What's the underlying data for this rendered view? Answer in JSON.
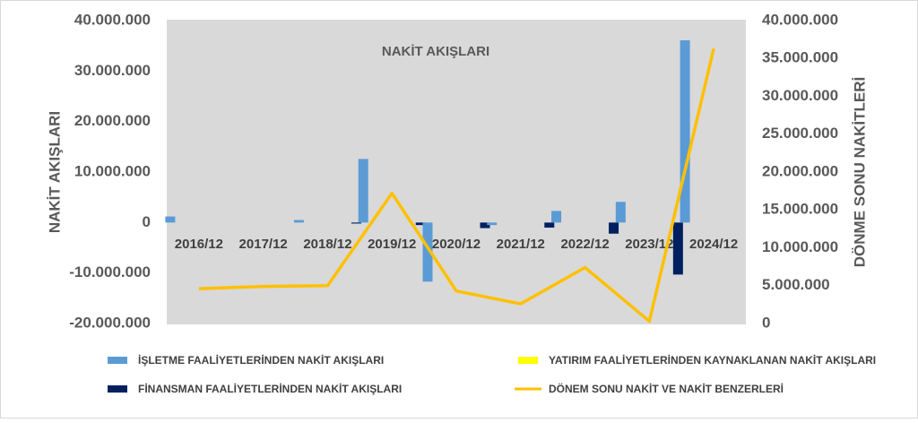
{
  "chart_data": {
    "type": "bar-line",
    "title": "NAKİT AKIŞLARI",
    "y_label": "NAKİT AKIŞLARI",
    "y2_label": "DÖNME SONU NAKİTLERİ",
    "categories": [
      "2016/12",
      "2017/12",
      "2018/12",
      "2019/12",
      "2020/12",
      "2021/12",
      "2022/12",
      "2023/12",
      "2024/12"
    ],
    "series": [
      {
        "name": "İŞLETME FAALİYETLERİNDEN NAKİT AKIŞLARI",
        "type": "bar",
        "color": "#5b9bd5",
        "values": [
          1200000,
          0,
          500000,
          12600000,
          -11700000,
          -500000,
          2300000,
          4100000,
          36100000
        ]
      },
      {
        "name": "YATIRIM FAALİYETLERİNDEN KAYNAKLANAN NAKİT AKIŞLARI",
        "type": "bar",
        "color": "#ffff00",
        "values": [
          0,
          0,
          0,
          0,
          0,
          0,
          0,
          0,
          0
        ]
      },
      {
        "name": "FİNANSMAN FAALİYETLERİNDEN NAKİT AKIŞLARI",
        "type": "bar",
        "color": "#002060",
        "values": [
          0,
          0,
          -200000,
          -500000,
          -1100000,
          -1000000,
          -2200000,
          -10300000,
          0
        ]
      },
      {
        "name": "DÖNEM SONU NAKİT VE NAKİT BENZERLERİ",
        "type": "line",
        "axis": "y2",
        "color": "#ffc000",
        "values": [
          4600000,
          4900000,
          5000000,
          17200000,
          4300000,
          2600000,
          7400000,
          300000,
          36300000
        ]
      }
    ],
    "ylim": [
      -20000000,
      40000000
    ],
    "yticks": [
      {
        "value": -20000000,
        "label": "-20.000.000"
      },
      {
        "value": -10000000,
        "label": "-10.000.000"
      },
      0,
      {
        "value": 10000000,
        "label": "10.000.000"
      },
      {
        "value": 20000000,
        "label": "20.000.000"
      },
      {
        "value": 30000000,
        "label": "30.000.000"
      },
      {
        "value": 40000000,
        "label": "40.000.000"
      }
    ],
    "y2lim": [
      0,
      40000000
    ],
    "y2ticks": [
      0,
      {
        "value": 5000000,
        "label": "5.000.000"
      },
      {
        "value": 10000000,
        "label": "10.000.000"
      },
      {
        "value": 15000000,
        "label": "15.000.000"
      },
      {
        "value": 20000000,
        "label": "20.000.000"
      },
      {
        "value": 25000000,
        "label": "25.000.000"
      },
      {
        "value": 30000000,
        "label": "30.000.000"
      },
      {
        "value": 35000000,
        "label": "35.000.000"
      },
      {
        "value": 40000000,
        "label": "40.000.000"
      }
    ]
  }
}
